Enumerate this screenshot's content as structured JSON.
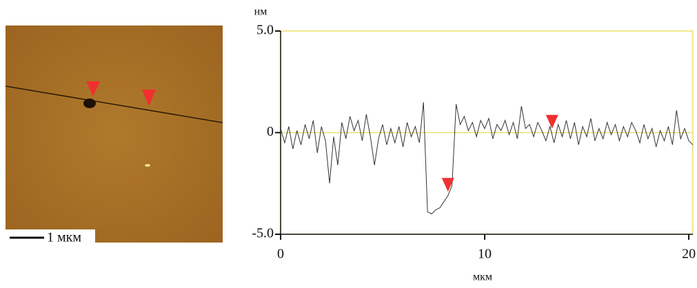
{
  "chart_data": {
    "type": "line",
    "y_label": "нм",
    "x_label": "мкм",
    "scale_bar_label": "1 мкм",
    "x": [
      0,
      0.2,
      0.4,
      0.6,
      0.8,
      1.0,
      1.2,
      1.4,
      1.6,
      1.8,
      2.0,
      2.2,
      2.4,
      2.6,
      2.8,
      3.0,
      3.2,
      3.4,
      3.6,
      3.8,
      4.0,
      4.2,
      4.4,
      4.6,
      4.8,
      5.0,
      5.2,
      5.4,
      5.6,
      5.8,
      6.0,
      6.2,
      6.4,
      6.6,
      6.8,
      7.0,
      7.2,
      7.4,
      7.6,
      7.8,
      8.0,
      8.2,
      8.4,
      8.6,
      8.8,
      9.0,
      9.2,
      9.4,
      9.6,
      9.8,
      10.0,
      10.2,
      10.4,
      10.6,
      10.8,
      11.0,
      11.2,
      11.4,
      11.6,
      11.8,
      12.0,
      12.2,
      12.4,
      12.6,
      12.8,
      13.0,
      13.2,
      13.4,
      13.6,
      13.8,
      14.0,
      14.2,
      14.4,
      14.6,
      14.8,
      15.0,
      15.2,
      15.4,
      15.6,
      15.8,
      16.0,
      16.2,
      16.4,
      16.6,
      16.8,
      17.0,
      17.2,
      17.4,
      17.6,
      17.8,
      18.0,
      18.2,
      18.4,
      18.6,
      18.8,
      19.0,
      19.2,
      19.4,
      19.6,
      19.8,
      20.0,
      20.2
    ],
    "series": [
      {
        "color": "#333333",
        "values": [
          0.2,
          -0.5,
          0.3,
          -0.8,
          0.1,
          -0.6,
          0.4,
          -0.3,
          0.6,
          -1.0,
          0.3,
          -0.4,
          -2.5,
          -0.2,
          -1.6,
          0.5,
          -0.3,
          0.8,
          0.1,
          0.6,
          -0.4,
          0.9,
          -0.2,
          -1.6,
          -0.3,
          0.4,
          -0.6,
          0.2,
          -0.5,
          0.3,
          -0.7,
          0.5,
          -0.2,
          0.3,
          -0.5,
          1.5,
          -3.9,
          -4.0,
          -3.8,
          -3.7,
          -3.4,
          -3.1,
          -2.6,
          1.4,
          0.4,
          0.8,
          0.1,
          0.5,
          -0.2,
          0.6,
          0.2,
          0.7,
          -0.3,
          0.4,
          0.1,
          0.6,
          -0.1,
          0.5,
          -0.3,
          1.3,
          0.2,
          0.4,
          -0.2,
          0.5,
          0.1,
          -0.4,
          0.3,
          -0.5,
          0.4,
          -0.2,
          0.6,
          -0.3,
          0.5,
          -0.6,
          0.3,
          -0.2,
          0.7,
          -0.4,
          0.2,
          -0.3,
          0.5,
          -0.1,
          0.4,
          -0.4,
          0.3,
          -0.2,
          0.5,
          0.1,
          -0.5,
          0.4,
          -0.3,
          0.2,
          -0.7,
          0.1,
          -0.4,
          0.3,
          -0.6,
          1.1,
          -0.3,
          0.2,
          -0.4,
          -0.6
        ]
      }
    ],
    "markers": [
      {
        "x": 8.2,
        "y": -2.6
      },
      {
        "x": 13.3,
        "y": 0.5
      }
    ],
    "xlim": [
      0,
      20.2
    ],
    "ylim": [
      -5,
      5
    ],
    "xticks": [
      0,
      10,
      20
    ],
    "yticks": [
      {
        "value": 5,
        "label": "5.0"
      },
      0,
      {
        "value": -5,
        "label": "-5.0"
      }
    ],
    "frame_color": "#e8e070"
  }
}
